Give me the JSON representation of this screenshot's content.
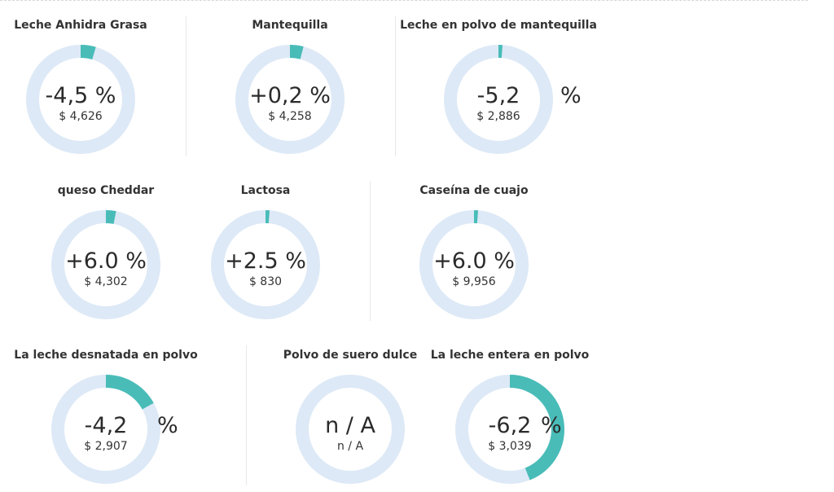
{
  "colors": {
    "ring_bg": "#dde9f6",
    "ring_fill": "#49bcb8",
    "text": "#2b2b2b"
  },
  "chart_data": {
    "type": "donut-grid",
    "items": [
      {
        "name": "Leche Anhidra Grasa",
        "change_label": "-4,5 %",
        "sign": "",
        "price": "$ 4,626",
        "change_pct": -4.5,
        "fill_fraction": 0.045
      },
      {
        "name": "Mantequilla",
        "change_label": "+0,2 %",
        "sign": "",
        "price": "$ 4,258",
        "change_pct": 0.2,
        "fill_fraction": 0.04
      },
      {
        "name": "Leche en polvo de mantequilla",
        "change_label": "-5,2",
        "sign": "%",
        "price": "$ 2,886",
        "change_pct": -5.2,
        "fill_fraction": 0.012
      },
      {
        "name": "queso Cheddar",
        "change_label": "+6.0 %",
        "sign": "",
        "price": "$ 4,302",
        "change_pct": 6.0,
        "fill_fraction": 0.03
      },
      {
        "name": "Lactosa",
        "change_label": "+2.5 %",
        "sign": "",
        "price": "$ 830",
        "change_pct": 2.5,
        "fill_fraction": 0.012
      },
      {
        "name": "Caseína de cuajo",
        "change_label": "+6.0 %",
        "sign": "",
        "price": "$ 9,956",
        "change_pct": 6.0,
        "fill_fraction": 0.012
      },
      {
        "name": "La leche desnatada en polvo",
        "change_label": "-4,2",
        "sign": "%",
        "price": "$ 2,907",
        "change_pct": -4.2,
        "fill_fraction": 0.17
      },
      {
        "name": "Polvo de suero dulce",
        "change_label": "n / A",
        "sign": "",
        "price": "n / A",
        "change_pct": null,
        "fill_fraction": 0
      },
      {
        "name": "La leche entera en polvo",
        "change_label": "-6,2",
        "sign": "%",
        "price": "$ 3,039",
        "change_pct": -6.2,
        "fill_fraction": 0.44
      }
    ]
  }
}
